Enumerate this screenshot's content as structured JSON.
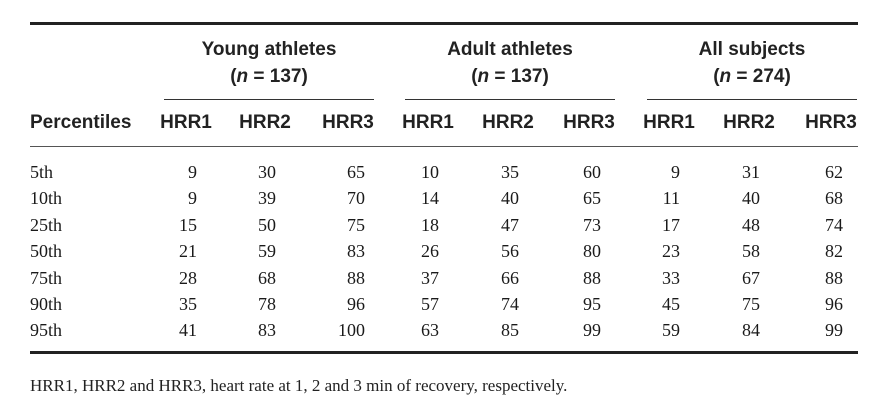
{
  "groups": [
    {
      "title": "Young athletes",
      "n_prefix": "(",
      "n_label": "n",
      "n_value": " = 137)"
    },
    {
      "title": "Adult athletes",
      "n_prefix": "(",
      "n_label": "n",
      "n_value": " = 137)"
    },
    {
      "title": "All subjects",
      "n_prefix": "(",
      "n_label": "n",
      "n_value": " = 274)"
    }
  ],
  "row_header": "Percentiles",
  "columns": [
    "HRR1",
    "HRR2",
    "HRR3",
    "HRR1",
    "HRR2",
    "HRR3",
    "HRR1",
    "HRR2",
    "HRR3"
  ],
  "rows": [
    {
      "label": "5th",
      "values": [
        "9",
        "30",
        "65",
        "10",
        "35",
        "60",
        "9",
        "31",
        "62"
      ]
    },
    {
      "label": "10th",
      "values": [
        "9",
        "39",
        "70",
        "14",
        "40",
        "65",
        "11",
        "40",
        "68"
      ]
    },
    {
      "label": "25th",
      "values": [
        "15",
        "50",
        "75",
        "18",
        "47",
        "73",
        "17",
        "48",
        "74"
      ]
    },
    {
      "label": "50th",
      "values": [
        "21",
        "59",
        "83",
        "26",
        "56",
        "80",
        "23",
        "58",
        "82"
      ]
    },
    {
      "label": "75th",
      "values": [
        "28",
        "68",
        "88",
        "37",
        "66",
        "88",
        "33",
        "67",
        "88"
      ]
    },
    {
      "label": "90th",
      "values": [
        "35",
        "78",
        "96",
        "57",
        "74",
        "95",
        "45",
        "75",
        "96"
      ]
    },
    {
      "label": "95th",
      "values": [
        "41",
        "83",
        "100",
        "63",
        "85",
        "99",
        "59",
        "84",
        "99"
      ]
    }
  ],
  "footnote": "HRR1, HRR2 and HRR3, heart rate at 1, 2 and 3 min of recovery, respectively."
}
